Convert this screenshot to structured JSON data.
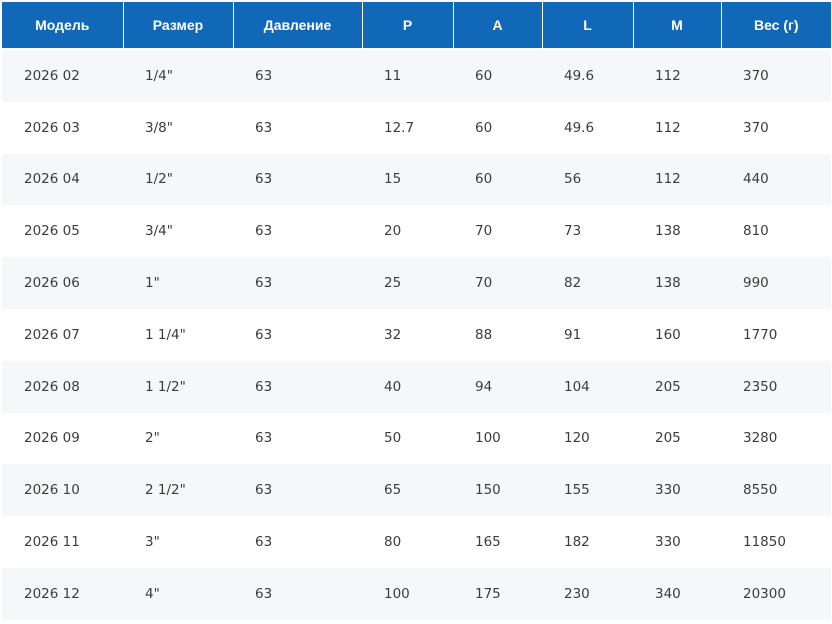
{
  "table": {
    "headers": [
      "Модель",
      "Размер",
      "Давление",
      "P",
      "A",
      "L",
      "M",
      "Вес (г)"
    ],
    "rows": [
      [
        "2026 02",
        "1/4\"",
        "63",
        "11",
        "60",
        "49.6",
        "112",
        "370"
      ],
      [
        "2026 03",
        "3/8\"",
        "63",
        "12.7",
        "60",
        "49.6",
        "112",
        "370"
      ],
      [
        "2026 04",
        "1/2\"",
        "63",
        "15",
        "60",
        "56",
        "112",
        "440"
      ],
      [
        "2026 05",
        "3/4\"",
        "63",
        "20",
        "70",
        "73",
        "138",
        "810"
      ],
      [
        "2026 06",
        "1\"",
        "63",
        "25",
        "70",
        "82",
        "138",
        "990"
      ],
      [
        "2026 07",
        "1 1/4\"",
        "63",
        "32",
        "88",
        "91",
        "160",
        "1770"
      ],
      [
        "2026 08",
        "1 1/2\"",
        "63",
        "40",
        "94",
        "104",
        "205",
        "2350"
      ],
      [
        "2026 09",
        "2\"",
        "63",
        "50",
        "100",
        "120",
        "205",
        "3280"
      ],
      [
        "2026 10",
        "2 1/2\"",
        "63",
        "65",
        "150",
        "155",
        "330",
        "8550"
      ],
      [
        "2026 11",
        "3\"",
        "63",
        "80",
        "165",
        "182",
        "330",
        "11850"
      ],
      [
        "2026 12",
        "4\"",
        "63",
        "100",
        "175",
        "230",
        "340",
        "20300"
      ]
    ]
  },
  "colors": {
    "header_bg": "#1268b8",
    "header_text": "#ffffff",
    "row_stripe": "#f6f7f8",
    "row_plain": "#ffffff",
    "cell_text": "#3c3c3c"
  }
}
